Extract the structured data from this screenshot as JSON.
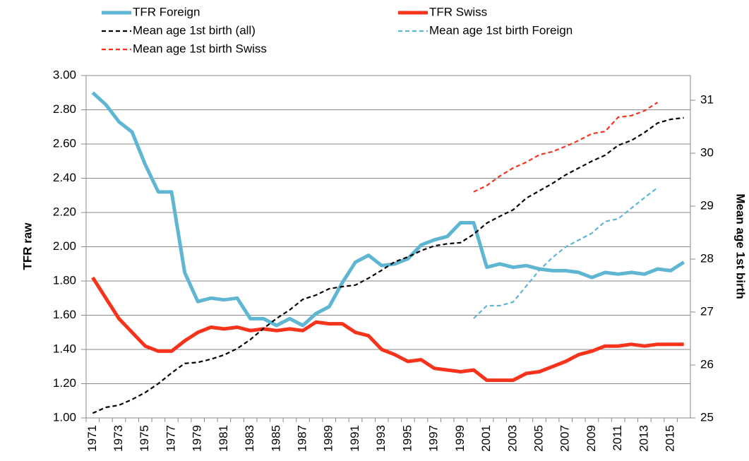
{
  "chart_data": {
    "type": "line",
    "y_label": "TFR raw",
    "y2_label": "Mean age 1st birth",
    "categories": [
      "1971",
      null,
      "1973",
      null,
      "1975",
      null,
      "1977",
      null,
      "1979",
      null,
      "1981",
      null,
      "1983",
      null,
      "1985",
      null,
      "1987",
      null,
      "1989",
      null,
      "1991",
      null,
      "1993",
      null,
      "1995",
      null,
      "1997",
      null,
      "1999",
      null,
      "2001",
      null,
      "2003",
      null,
      "2005",
      null,
      "2007",
      null,
      "2009",
      null,
      "2011",
      null,
      "2013",
      null,
      "2015",
      null
    ],
    "series": [
      {
        "name": "TFR Foreign",
        "color": "#5fb6d3",
        "style": "solid",
        "axis": "y",
        "values": [
          2.9,
          2.83,
          2.73,
          2.67,
          2.48,
          2.32,
          2.32,
          1.85,
          1.68,
          1.7,
          1.69,
          1.7,
          1.58,
          1.58,
          1.54,
          1.58,
          1.54,
          1.61,
          1.65,
          1.79,
          1.91,
          1.95,
          1.89,
          1.9,
          1.93,
          2.01,
          2.04,
          2.06,
          2.14,
          2.14,
          1.88,
          1.9,
          1.88,
          1.89,
          1.87,
          1.86,
          1.86,
          1.85,
          1.82,
          1.85,
          1.84,
          1.85,
          1.84,
          1.87,
          1.86,
          1.91
        ]
      },
      {
        "name": "TFR Swiss",
        "color": "#f7331c",
        "style": "solid",
        "axis": "y",
        "values": [
          1.82,
          1.7,
          1.58,
          1.5,
          1.42,
          1.39,
          1.39,
          1.45,
          1.5,
          1.53,
          1.52,
          1.53,
          1.51,
          1.52,
          1.51,
          1.52,
          1.51,
          1.56,
          1.55,
          1.55,
          1.5,
          1.48,
          1.4,
          1.37,
          1.33,
          1.34,
          1.29,
          1.28,
          1.27,
          1.28,
          1.22,
          1.22,
          1.22,
          1.26,
          1.27,
          1.3,
          1.33,
          1.37,
          1.39,
          1.42,
          1.42,
          1.43,
          1.42,
          1.43,
          1.43,
          1.43
        ]
      },
      {
        "name": "Mean age 1st birth (all)",
        "color": "#000000",
        "style": "dashed",
        "axis": "y2",
        "values": [
          25.09,
          25.2,
          25.24,
          25.35,
          25.48,
          25.65,
          25.85,
          26.03,
          26.05,
          26.11,
          26.19,
          26.31,
          26.48,
          26.69,
          26.88,
          27.04,
          27.24,
          27.32,
          27.44,
          27.48,
          27.51,
          27.64,
          27.79,
          27.95,
          28.04,
          28.16,
          28.25,
          28.29,
          28.31,
          28.47,
          28.68,
          28.81,
          28.93,
          29.15,
          29.29,
          29.43,
          29.59,
          29.72,
          29.85,
          29.96,
          30.15,
          30.24,
          30.39,
          30.57,
          30.64,
          30.67
        ]
      },
      {
        "name": "Mean age 1st birth Foreign",
        "color": "#5fb6d3",
        "style": "dashed",
        "axis": "y2",
        "values": [
          null,
          null,
          null,
          null,
          null,
          null,
          null,
          null,
          null,
          null,
          null,
          null,
          null,
          null,
          null,
          null,
          null,
          null,
          null,
          null,
          null,
          null,
          null,
          null,
          null,
          null,
          null,
          null,
          null,
          26.88,
          27.12,
          27.12,
          27.19,
          27.49,
          27.79,
          28.03,
          28.23,
          28.36,
          28.49,
          28.71,
          28.76,
          28.96,
          29.16,
          29.35,
          null,
          null
        ]
      },
      {
        "name": "Mean age 1st birth Swiss",
        "color": "#f7331c",
        "style": "dashed",
        "axis": "y2",
        "values": [
          null,
          null,
          null,
          null,
          null,
          null,
          null,
          null,
          null,
          null,
          null,
          null,
          null,
          null,
          null,
          null,
          null,
          null,
          null,
          null,
          null,
          null,
          null,
          null,
          null,
          null,
          null,
          null,
          null,
          29.27,
          29.39,
          29.57,
          29.72,
          29.83,
          29.97,
          30.03,
          30.13,
          30.24,
          30.37,
          30.41,
          30.68,
          30.71,
          30.8,
          30.96,
          null,
          null
        ]
      }
    ],
    "ylim": [
      1,
      3
    ],
    "yticks": [
      {
        "value": 1,
        "label": "1.00"
      },
      {
        "value": 1.2,
        "label": "1.20"
      },
      {
        "value": 1.4,
        "label": "1.40"
      },
      {
        "value": 1.6,
        "label": "1.60"
      },
      {
        "value": 1.8,
        "label": "1.80"
      },
      {
        "value": 2,
        "label": "2.00"
      },
      {
        "value": 2.2,
        "label": "2.20"
      },
      {
        "value": 2.4,
        "label": "2.40"
      },
      {
        "value": 2.6,
        "label": "2.60"
      },
      {
        "value": 2.8,
        "label": "2.80"
      },
      {
        "value": 3,
        "label": "3.00"
      }
    ],
    "y2lim": [
      25,
      31.467
    ],
    "y2ticks": [
      25,
      26,
      27,
      28,
      29,
      30,
      31
    ],
    "grid": true,
    "legend": "top"
  }
}
